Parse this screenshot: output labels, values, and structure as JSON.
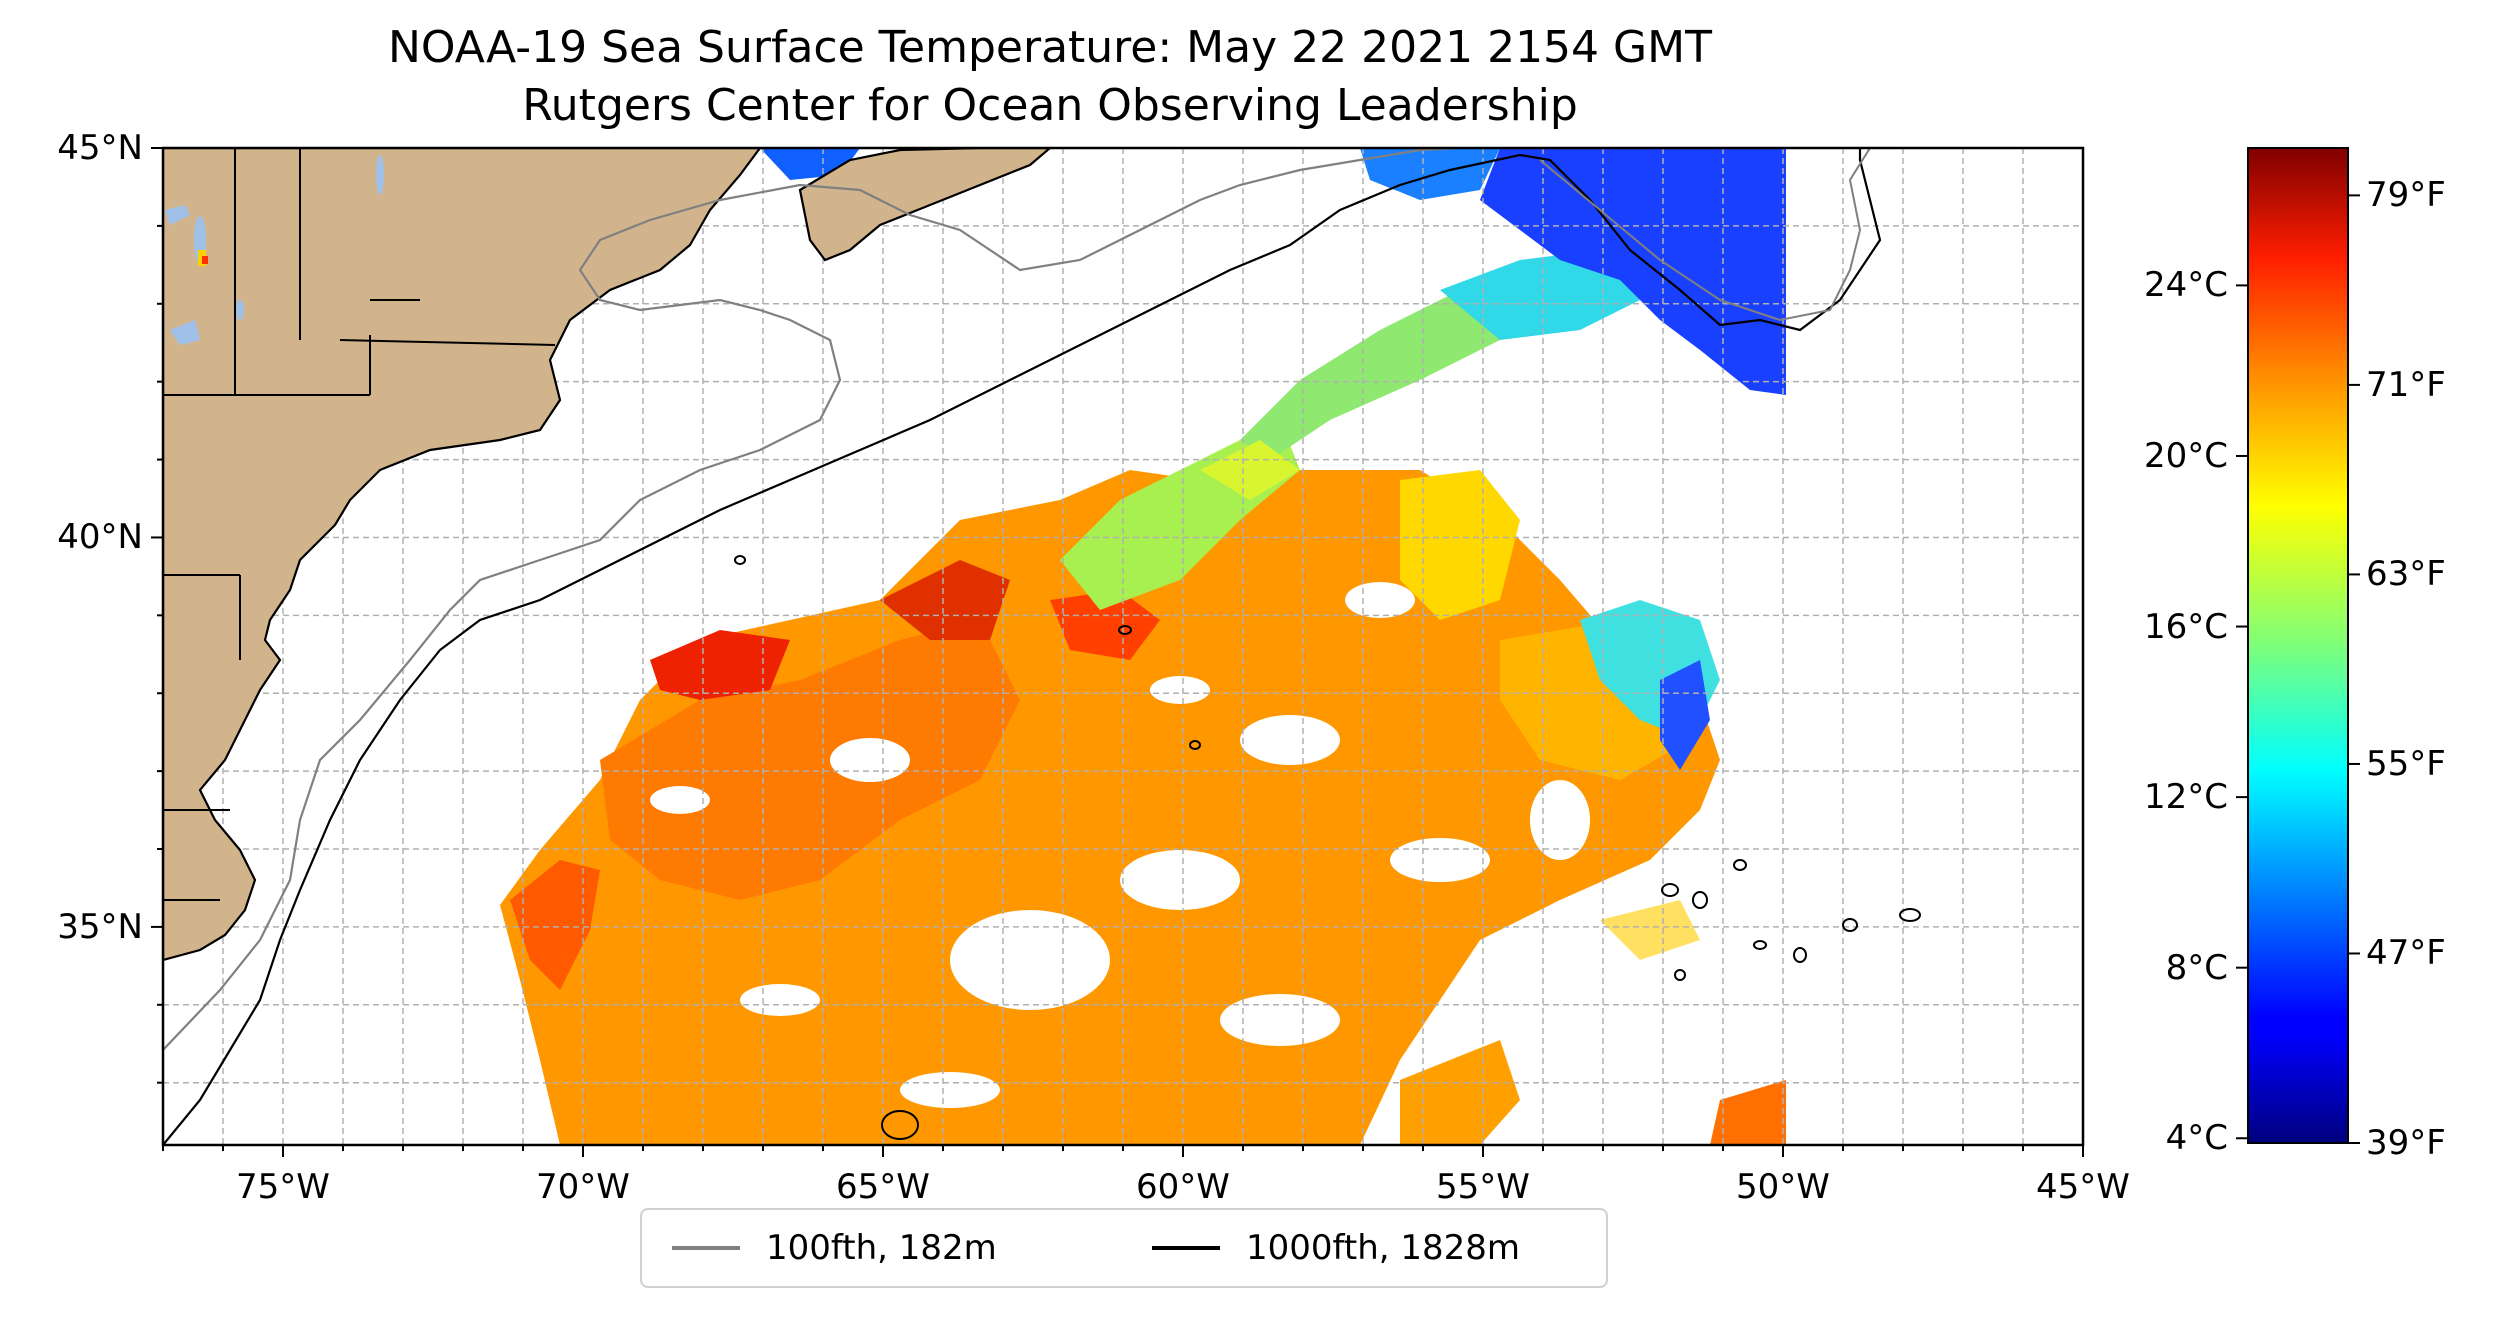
{
  "title": {
    "line1": "NOAA-19 Sea Surface Temperature: May 22 2021 2154 GMT",
    "line2": "Rutgers Center for Ocean Observing Leadership"
  },
  "map": {
    "lon_range": [
      -77,
      -45
    ],
    "lat_range": [
      32.2,
      45
    ],
    "lat_ticks": [
      {
        "value": 45,
        "label": "45°N"
      },
      {
        "value": 40,
        "label": "40°N"
      },
      {
        "value": 35,
        "label": "35°N"
      }
    ],
    "lon_ticks": [
      {
        "value": -75,
        "label": "75°W"
      },
      {
        "value": -70,
        "label": "70°W"
      },
      {
        "value": -65,
        "label": "65°W"
      },
      {
        "value": -60,
        "label": "60°W"
      },
      {
        "value": -55,
        "label": "55°W"
      },
      {
        "value": -50,
        "label": "50°W"
      },
      {
        "value": -45,
        "label": "45°W"
      }
    ],
    "gridlines": "dashed, every 1 degree",
    "land_color": "#d2b48c",
    "lake_color": "#9fc0e8"
  },
  "colorbar": {
    "colormap": "jet",
    "range_f": [
      39,
      81
    ],
    "celsius_ticks": [
      {
        "value": 24,
        "label": "24°C"
      },
      {
        "value": 20,
        "label": "20°C"
      },
      {
        "value": 16,
        "label": "16°C"
      },
      {
        "value": 12,
        "label": "12°C"
      },
      {
        "value": 8,
        "label": "8°C"
      },
      {
        "value": 4,
        "label": "4°C"
      }
    ],
    "fahrenheit_ticks": [
      {
        "value": 79,
        "label": "79°F"
      },
      {
        "value": 71,
        "label": "71°F"
      },
      {
        "value": 63,
        "label": "63°F"
      },
      {
        "value": 55,
        "label": "55°F"
      },
      {
        "value": 47,
        "label": "47°F"
      },
      {
        "value": 39,
        "label": "39°F"
      }
    ]
  },
  "legend": {
    "placement": "bottom-center",
    "entries": [
      {
        "label": "100fth, 182m",
        "color": "#808080"
      },
      {
        "label": "1000fth, 1828m",
        "color": "#000000"
      }
    ]
  }
}
